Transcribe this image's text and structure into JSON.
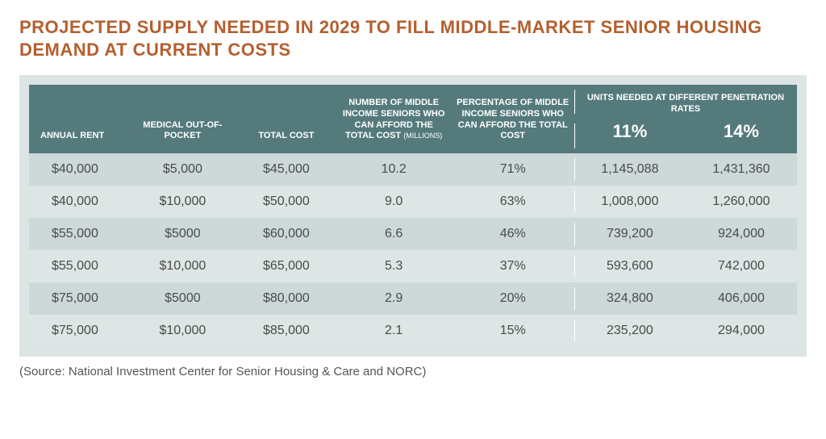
{
  "title": "PROJECTED SUPPLY NEEDED IN 2029 TO FILL MIDDLE-MARKET SENIOR HOUSING DEMAND AT CURRENT COSTS",
  "colors": {
    "title": "#b45f2e",
    "header_bg": "#557a7c",
    "header_text": "#ffffff",
    "wrap_bg": "#dce4e4",
    "row_odd": "#cdd8d8",
    "row_even": "#dde5e5",
    "body_text": "#4a4a4a"
  },
  "columns": {
    "annual_rent": "ANNUAL RENT",
    "medical": "MEDICAL OUT-OF-POCKET",
    "total": "TOTAL COST",
    "num_afford": "NUMBER OF MIDDLE INCOME SENIORS WHO CAN AFFORD THE TOTAL COST",
    "num_afford_sub": "(MILLIONS)",
    "pct_afford": "PERCENTAGE OF MIDDLE INCOME SENIORS WHO CAN AFFORD THE TOTAL COST",
    "units_group": "UNITS NEEDED AT DIFFERENT PENETRATION RATES",
    "rate_a": "11%",
    "rate_b": "14%"
  },
  "rows": [
    {
      "annual_rent": "$40,000",
      "medical": "$5,000",
      "total": "$45,000",
      "num": "10.2",
      "pct": "71%",
      "u11": "1,145,088",
      "u14": "1,431,360"
    },
    {
      "annual_rent": "$40,000",
      "medical": "$10,000",
      "total": "$50,000",
      "num": "9.0",
      "pct": "63%",
      "u11": "1,008,000",
      "u14": "1,260,000"
    },
    {
      "annual_rent": "$55,000",
      "medical": "$5000",
      "total": "$60,000",
      "num": "6.6",
      "pct": "46%",
      "u11": "739,200",
      "u14": "924,000"
    },
    {
      "annual_rent": "$55,000",
      "medical": "$10,000",
      "total": "$65,000",
      "num": "5.3",
      "pct": "37%",
      "u11": "593,600",
      "u14": "742,000"
    },
    {
      "annual_rent": "$75,000",
      "medical": "$5000",
      "total": "$80,000",
      "num": "2.9",
      "pct": "20%",
      "u11": "324,800",
      "u14": "406,000"
    },
    {
      "annual_rent": "$75,000",
      "medical": "$10,000",
      "total": "$85,000",
      "num": "2.1",
      "pct": "15%",
      "u11": "235,200",
      "u14": "294,000"
    }
  ],
  "source": "(Source: National Investment Center for Senior Housing & Care and NORC)"
}
